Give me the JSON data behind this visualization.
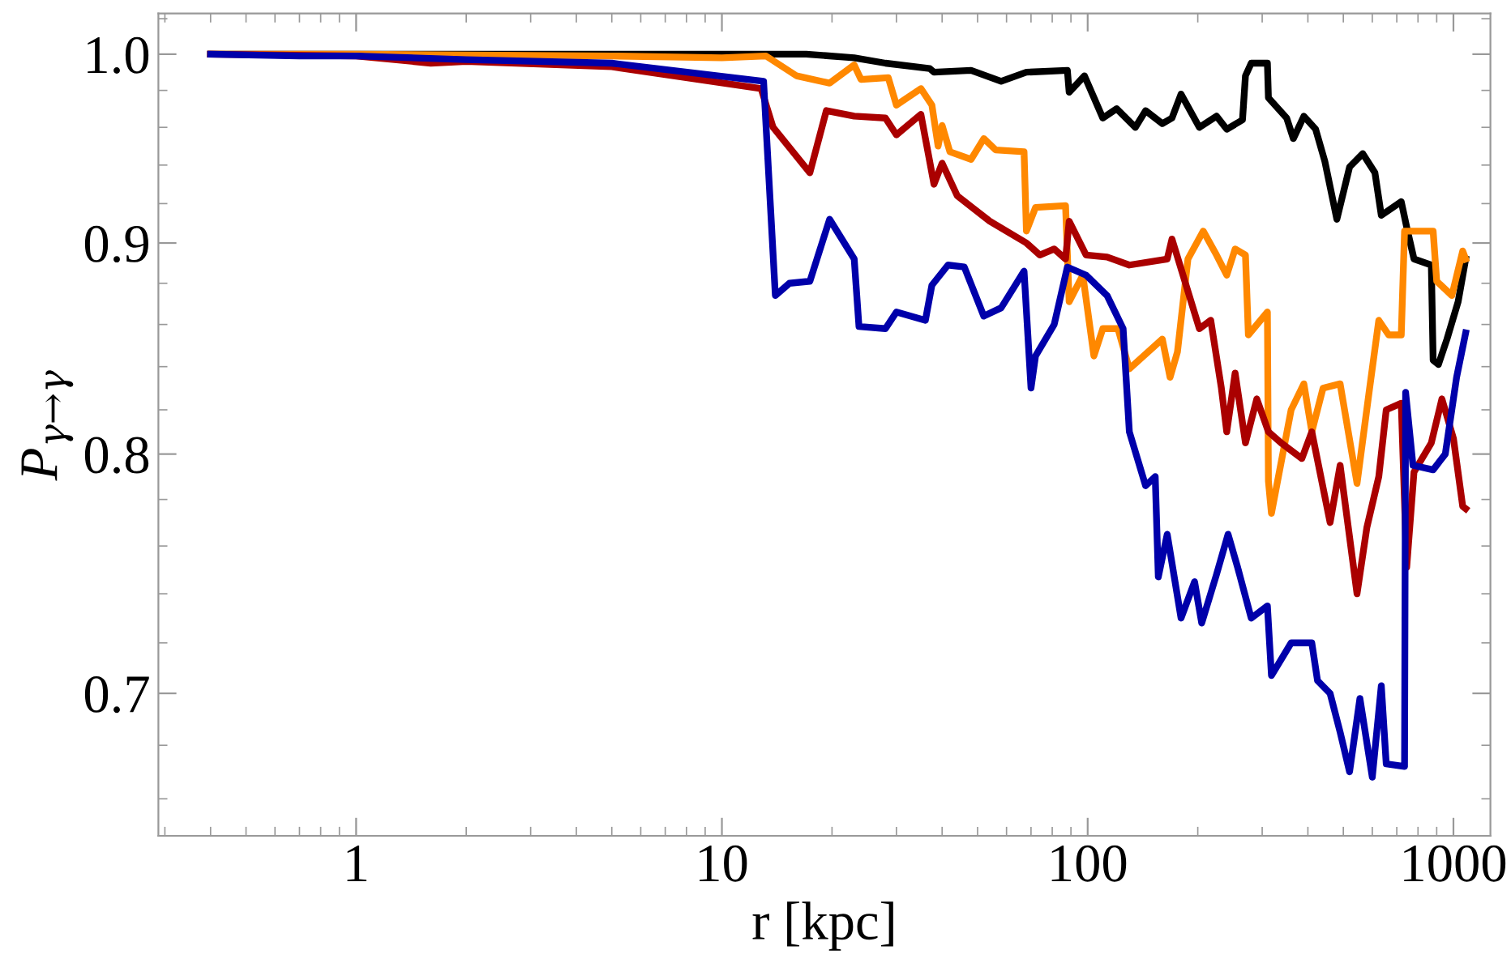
{
  "chart_data": {
    "type": "line",
    "xlabel": "r [kpc]",
    "ylabel": "P$_{γ→γ}$",
    "log": "xy",
    "xlim": [
      0.288,
      1262
    ],
    "ylim": [
      0.6465,
      1.023
    ],
    "xticks": [
      1,
      10,
      100,
      1000
    ],
    "yticks": [
      0.7,
      0.8,
      0.9,
      {
        "value": 1.0,
        "label": "1.0"
      }
    ],
    "grid": false,
    "marker": "none",
    "line_style": "solid",
    "series": [
      {
        "color": "#000000",
        "x": [
          0.4,
          1,
          5,
          13,
          17,
          23,
          28,
          37,
          38,
          48,
          58,
          68,
          88,
          89,
          98,
          110,
          120,
          135,
          144,
          160,
          170,
          180,
          202,
          225,
          240,
          265,
          270,
          280,
          310,
          312,
          350,
          365,
          390,
          420,
          445,
          480,
          520,
          565,
          610,
          635,
          720,
          745,
          780,
          870,
          880,
          910,
          960,
          1030,
          1080
        ],
        "values": [
          1.0,
          1.0,
          1.0,
          1.0,
          1.0,
          0.998,
          0.995,
          0.992,
          0.99,
          0.991,
          0.985,
          0.99,
          0.991,
          0.979,
          0.988,
          0.965,
          0.97,
          0.96,
          0.969,
          0.962,
          0.965,
          0.978,
          0.96,
          0.966,
          0.959,
          0.964,
          0.988,
          0.995,
          0.995,
          0.976,
          0.965,
          0.954,
          0.966,
          0.959,
          0.942,
          0.912,
          0.939,
          0.946,
          0.936,
          0.914,
          0.921,
          0.908,
          0.892,
          0.889,
          0.843,
          0.841,
          0.853,
          0.871,
          0.892
        ]
      },
      {
        "color": "#ff8800",
        "x": [
          0.4,
          1,
          5,
          10,
          13.2,
          16,
          19.7,
          23,
          24,
          28.5,
          30,
          35,
          37.5,
          39,
          40,
          42,
          48,
          52,
          56,
          67,
          68,
          72,
          87,
          89,
          97,
          104,
          110,
          121,
          130,
          160,
          168,
          176,
          188,
          207,
          225,
          240,
          253,
          270,
          275,
          310,
          312,
          318,
          360,
          390,
          410,
          440,
          490,
          545,
          590,
          625,
          665,
          720,
          735,
          880,
          900,
          990,
          1060,
          1080
        ],
        "values": [
          1.0,
          1.0,
          0.999,
          0.998,
          0.999,
          0.988,
          0.984,
          0.994,
          0.986,
          0.987,
          0.972,
          0.981,
          0.972,
          0.95,
          0.961,
          0.947,
          0.943,
          0.954,
          0.948,
          0.947,
          0.906,
          0.918,
          0.919,
          0.871,
          0.884,
          0.845,
          0.858,
          0.858,
          0.839,
          0.853,
          0.835,
          0.847,
          0.892,
          0.906,
          0.894,
          0.884,
          0.897,
          0.894,
          0.855,
          0.866,
          0.788,
          0.774,
          0.82,
          0.832,
          0.81,
          0.83,
          0.832,
          0.787,
          0.83,
          0.862,
          0.855,
          0.855,
          0.906,
          0.906,
          0.881,
          0.874,
          0.896,
          0.892
        ]
      },
      {
        "color": "#aa0000",
        "x": [
          0.4,
          1,
          1.6,
          2,
          5,
          12.8,
          13.8,
          17.4,
          19.3,
          23,
          28,
          30,
          35,
          38,
          40,
          44,
          54,
          68,
          74,
          81,
          87,
          89,
          99,
          113,
          130,
          165,
          170,
          188,
          202,
          217,
          232,
          240,
          253,
          270,
          290,
          312,
          338,
          385,
          410,
          460,
          490,
          545,
          580,
          625,
          655,
          720,
          745,
          780,
          870,
          930,
          1000,
          1060,
          1080
        ],
        "values": [
          1.0,
          0.999,
          0.995,
          0.996,
          0.993,
          0.981,
          0.96,
          0.936,
          0.969,
          0.966,
          0.965,
          0.956,
          0.967,
          0.93,
          0.941,
          0.924,
          0.911,
          0.9,
          0.894,
          0.897,
          0.892,
          0.911,
          0.894,
          0.893,
          0.889,
          0.892,
          0.902,
          0.876,
          0.858,
          0.862,
          0.83,
          0.81,
          0.837,
          0.805,
          0.825,
          0.81,
          0.805,
          0.798,
          0.81,
          0.77,
          0.795,
          0.74,
          0.768,
          0.79,
          0.82,
          0.823,
          0.751,
          0.792,
          0.805,
          0.825,
          0.807,
          0.777,
          0.776
        ]
      },
      {
        "color": "#0000aa",
        "x": [
          0.4,
          0.7,
          1,
          2,
          5,
          13,
          14,
          15.3,
          17.4,
          19.7,
          23,
          23.7,
          28,
          30,
          36,
          37.5,
          41.5,
          46,
          52,
          58,
          67,
          70,
          72,
          81,
          88,
          99,
          113,
          125,
          130,
          144,
          153,
          156,
          165,
          180,
          196,
          205,
          225,
          242,
          257,
          280,
          310,
          318,
          360,
          410,
          425,
          460,
          490,
          520,
          555,
          600,
          635,
          655,
          735,
          740,
          775,
          880,
          950,
          1020,
          1080
        ],
        "values": [
          1.0,
          0.999,
          0.999,
          0.997,
          0.995,
          0.985,
          0.874,
          0.88,
          0.881,
          0.912,
          0.892,
          0.859,
          0.858,
          0.866,
          0.862,
          0.879,
          0.889,
          0.888,
          0.864,
          0.868,
          0.886,
          0.83,
          0.845,
          0.86,
          0.888,
          0.884,
          0.874,
          0.858,
          0.81,
          0.786,
          0.79,
          0.747,
          0.765,
          0.73,
          0.745,
          0.728,
          0.748,
          0.765,
          0.751,
          0.73,
          0.735,
          0.707,
          0.72,
          0.72,
          0.705,
          0.7,
          0.685,
          0.67,
          0.698,
          0.668,
          0.703,
          0.673,
          0.672,
          0.828,
          0.795,
          0.793,
          0.8,
          0.835,
          0.856
        ]
      }
    ]
  }
}
